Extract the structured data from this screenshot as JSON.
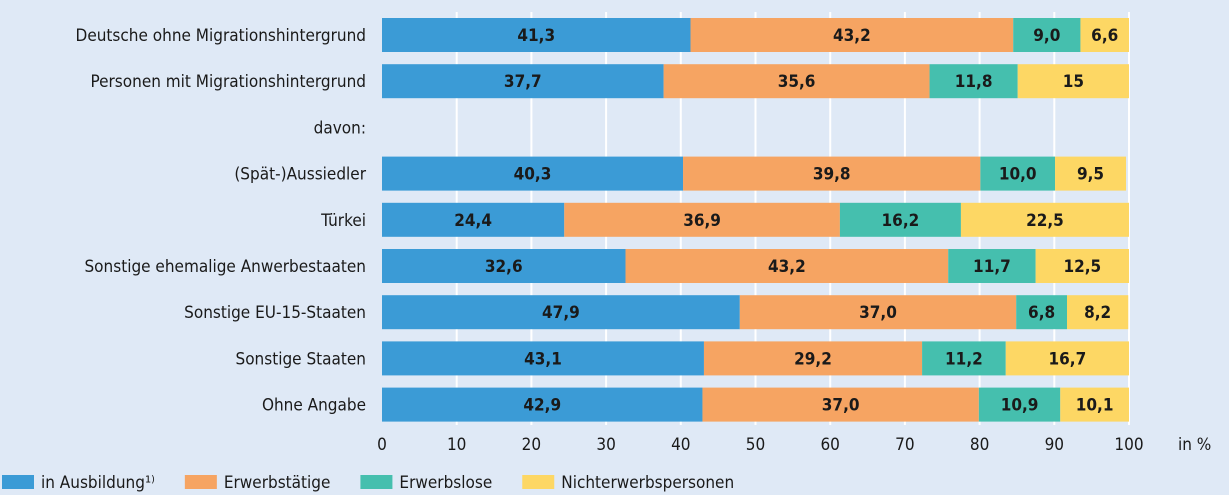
{
  "chart_data": {
    "type": "bar",
    "orientation": "horizontal",
    "stacked": true,
    "categories": [
      "Deutsche ohne Migrationshintergrund",
      "Personen mit Migrationshintergrund",
      "davon:",
      "(Spät-)Aussiedler",
      "Türkei",
      "Sonstige ehemalige Anwerbestaaten",
      "Sonstige EU-15-Staaten",
      "Sonstige Staaten",
      "Ohne Angabe"
    ],
    "series": [
      {
        "name": "in Ausbildung¹⁾",
        "color": "#3b9bd6",
        "values": [
          41.3,
          37.7,
          null,
          40.3,
          24.4,
          32.6,
          47.9,
          43.1,
          42.9
        ],
        "labels": [
          "41,3",
          "37,7",
          "",
          "40,3",
          "24,4",
          "32,6",
          "47,9",
          "43,1",
          "42,9"
        ]
      },
      {
        "name": "Erwerbstätige",
        "color": "#f6a462",
        "values": [
          43.2,
          35.6,
          null,
          39.8,
          36.9,
          43.2,
          37.0,
          29.2,
          37.0
        ],
        "labels": [
          "43,2",
          "35,6",
          "",
          "39,8",
          "36,9",
          "43,2",
          "37,0",
          "29,2",
          "37,0"
        ]
      },
      {
        "name": "Erwerbslose",
        "color": "#45bfae",
        "values": [
          9.0,
          11.8,
          null,
          10.0,
          16.2,
          11.7,
          6.8,
          11.2,
          10.9
        ],
        "labels": [
          "9,0",
          "11,8",
          "",
          "10,0",
          "16,2",
          "11,7",
          "6,8",
          "11,2",
          "10,9"
        ]
      },
      {
        "name": "Nichterwerbspersonen",
        "color": "#fdd764",
        "values": [
          6.6,
          15,
          null,
          9.5,
          22.5,
          12.5,
          8.2,
          16.7,
          10.1
        ],
        "labels": [
          "6,6",
          "15",
          "",
          "9,5",
          "22,5",
          "12,5",
          "8,2",
          "16,7",
          "10,1"
        ]
      }
    ],
    "xlim": [
      0,
      100
    ],
    "xticks": [
      "0",
      "10",
      "20",
      "30",
      "40",
      "50",
      "60",
      "70",
      "80",
      "90",
      "100"
    ],
    "xunit": "in %",
    "grid": true,
    "legend_position": "bottom-left",
    "colors": {
      "background": "#dfe9f6",
      "grid": "#ffffff"
    }
  }
}
